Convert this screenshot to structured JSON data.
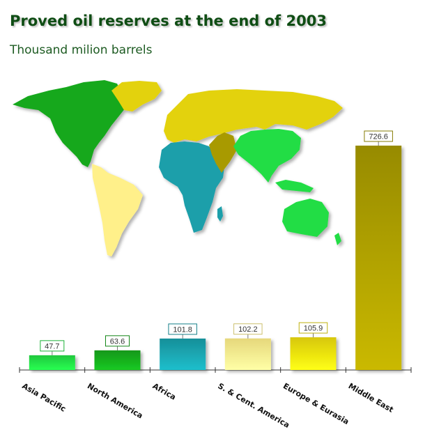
{
  "title": "Proved oil reserves at the end of 2003",
  "subtitle": "Thousand milion barrels",
  "chart_data": {
    "type": "bar",
    "categories": [
      "Asia Pacific",
      "North America",
      "Africa",
      "S. & Cent. America",
      "Europe & Eurasia",
      "Middle East"
    ],
    "values": [
      47.7,
      63.6,
      101.8,
      102.2,
      105.9,
      726.6
    ],
    "value_labels": [
      "47.7",
      "63.6",
      "101.8",
      "102.2",
      "105.9",
      "726.6"
    ],
    "colors": [
      "#22dd44",
      "#16a81c",
      "#1a9faa",
      "#fff08a",
      "#efdd10",
      "#a89a05"
    ],
    "ylim": [
      0,
      780
    ],
    "grid": false,
    "legend": "none"
  },
  "map_colors": {
    "north_america": "#16a81c",
    "south_america": "#fff08a",
    "europe_eurasia": "#e3d20c",
    "africa": "#1a9faa",
    "middle_east": "#a89a05",
    "asia_pacific": "#22dd44"
  }
}
